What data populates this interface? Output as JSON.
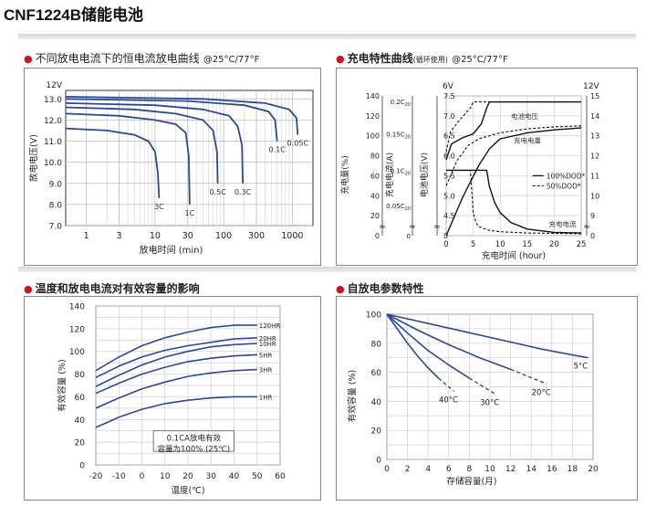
{
  "page_title": "CNF1224B储能电池",
  "sections": [
    {
      "title": "不同放电电流下的恒电流放电曲线",
      "suffix": "@25°C/77°F"
    },
    {
      "title": "充电特性曲线",
      "small": "(循环使用)",
      "suffix": "@25°C/77°F"
    },
    {
      "title": "温度和放电电流对有效容量的影响"
    },
    {
      "title": "自放电参数特性"
    }
  ],
  "chart_data": [
    {
      "type": "line",
      "title": "不同放电电流下的恒电流放电曲线 @25°C/77°F",
      "xlabel": "放电时间 (min)",
      "ylabel": "放电电压(V)",
      "x_scale": "log",
      "xlim": [
        0.5,
        2000
      ],
      "ylim": [
        7.0,
        13.4
      ],
      "x_ticks": [
        "1",
        "3",
        "10",
        "30",
        "100",
        "300",
        "1000"
      ],
      "y_ticks": [
        "13.0",
        "12.0",
        "11.0",
        "10.0",
        "9.0",
        "8.0",
        "7.0"
      ],
      "top_label": "12V",
      "grid": true,
      "series": [
        {
          "name": "3C",
          "x": [
            0.5,
            2,
            5,
            8,
            10,
            11,
            11.5
          ],
          "y": [
            11.6,
            11.5,
            11.3,
            11.0,
            10.5,
            9.5,
            8.3
          ]
        },
        {
          "name": "1C",
          "x": [
            0.5,
            3,
            10,
            20,
            28,
            31,
            32
          ],
          "y": [
            12.3,
            12.2,
            12.0,
            11.8,
            11.4,
            10.3,
            8.0
          ]
        },
        {
          "name": "0.5C",
          "x": [
            0.5,
            5,
            20,
            50,
            70,
            80,
            82
          ],
          "y": [
            12.6,
            12.5,
            12.3,
            12.0,
            11.5,
            10.5,
            9.0
          ]
        },
        {
          "name": "0.3C",
          "x": [
            0.5,
            10,
            50,
            120,
            160,
            185,
            190
          ],
          "y": [
            12.8,
            12.7,
            12.5,
            12.2,
            11.7,
            10.8,
            9.0
          ]
        },
        {
          "name": "0.1C",
          "x": [
            0.5,
            30,
            200,
            450,
            560,
            600
          ],
          "y": [
            13.0,
            12.9,
            12.7,
            12.4,
            12.0,
            11.0
          ]
        },
        {
          "name": "0.05C",
          "x": [
            0.5,
            50,
            400,
            900,
            1150,
            1200
          ],
          "y": [
            13.1,
            13.0,
            12.8,
            12.5,
            12.1,
            11.3
          ]
        }
      ]
    },
    {
      "type": "line",
      "title": "充电特性曲线 (循环使用) @25°C/77°F",
      "xlabel": "充电时间 (hour)",
      "x_ticks": [
        "0",
        "5",
        "10",
        "15",
        "20",
        "25"
      ],
      "xlim": [
        0,
        25
      ],
      "axes": [
        {
          "label": "充电量(%)",
          "ticks": [
            "140",
            "120",
            "100",
            "80",
            "60",
            "40",
            "20",
            "0"
          ]
        },
        {
          "label": "充电电流(A)",
          "ticks": [
            "0.2C20",
            "0.15C20",
            "0.1C20",
            "0.05C20",
            "0"
          ]
        },
        {
          "label": "电池电压(V)",
          "top": "6V",
          "ticks": [
            "7.5",
            "7.0",
            "6.5",
            "6.0",
            "5.5",
            "5.0",
            "4.5",
            "0"
          ]
        },
        {
          "label": "",
          "top": "12V",
          "ticks": [
            "15",
            "14",
            "13",
            "12",
            "11",
            "10",
            "9",
            "0"
          ]
        }
      ],
      "annotations": [
        "电池电压",
        "充电电量",
        "充电电流"
      ],
      "legend": {
        "position": "right",
        "entries": [
          "100%DOD*",
          "50%DOD*"
        ]
      },
      "series": [
        {
          "name": "电池电压",
          "dod": "100%DOD*",
          "x": [
            0,
            1,
            3,
            5,
            6.5,
            7.5,
            8,
            25
          ],
          "y_volt_6v": [
            5.9,
            6.3,
            6.45,
            6.55,
            6.8,
            7.2,
            7.35,
            7.35
          ]
        },
        {
          "name": "电池电压",
          "dod": "50%DOD*",
          "x": [
            0,
            0.8,
            2.5,
            4.5,
            5,
            25
          ],
          "y_volt_6v": [
            6.1,
            6.6,
            6.9,
            7.2,
            7.35,
            7.35
          ]
        },
        {
          "name": "充电量",
          "dod": "100%DOD*",
          "x": [
            0,
            3,
            6,
            8,
            10,
            15,
            20,
            25
          ],
          "y_percent": [
            0,
            38,
            70,
            87,
            97,
            103,
            106,
            108
          ]
        },
        {
          "name": "充电量",
          "dod": "50%DOD*",
          "x": [
            0,
            2,
            4,
            6,
            10,
            15,
            20,
            25
          ],
          "y_percent": [
            50,
            75,
            90,
            97,
            103,
            107,
            109,
            110
          ]
        },
        {
          "name": "充电电流",
          "dod": "100%DOD*",
          "x": [
            0,
            7.5,
            8,
            9,
            10,
            12,
            15,
            20,
            25
          ],
          "y_c20": [
            0.1,
            0.1,
            0.075,
            0.05,
            0.035,
            0.02,
            0.01,
            0.005,
            0.004
          ]
        },
        {
          "name": "充电电流",
          "dod": "50%DOD*",
          "x": [
            0,
            4.5,
            5,
            5.5,
            6,
            8,
            10,
            15,
            25
          ],
          "y_c20": [
            0.1,
            0.1,
            0.035,
            0.02,
            0.014,
            0.008,
            0.006,
            0.004,
            0.003
          ]
        }
      ]
    },
    {
      "type": "line",
      "title": "温度和放电电流对有效容量的影响",
      "xlabel": "温度(℃)",
      "ylabel": "有效容量 (%)",
      "xlim": [
        -20,
        60
      ],
      "ylim": [
        0,
        140
      ],
      "x_ticks": [
        "-20",
        "-10",
        "0",
        "10",
        "20",
        "30",
        "40",
        "50",
        "60"
      ],
      "y_ticks": [
        "140",
        "120",
        "100",
        "80",
        "60",
        "40",
        "20",
        "0"
      ],
      "grid": true,
      "note": [
        "0.1CA放电有效",
        "容量为100% (25℃)"
      ],
      "series": [
        {
          "name": "120HR",
          "x": [
            -20,
            -10,
            0,
            10,
            20,
            30,
            40,
            50
          ],
          "y": [
            83,
            95,
            105,
            112,
            117,
            121,
            123,
            123
          ]
        },
        {
          "name": "20HR",
          "x": [
            -20,
            -10,
            0,
            10,
            20,
            30,
            40,
            50
          ],
          "y": [
            77,
            87,
            95,
            101,
            105,
            108,
            111,
            112
          ]
        },
        {
          "name": "10HR",
          "x": [
            -20,
            -10,
            0,
            10,
            20,
            30,
            40,
            50
          ],
          "y": [
            69,
            79,
            88,
            95,
            100,
            104,
            106,
            107
          ]
        },
        {
          "name": "5HR",
          "x": [
            -20,
            -10,
            0,
            10,
            20,
            30,
            40,
            50
          ],
          "y": [
            63,
            72,
            80,
            86,
            91,
            94,
            96,
            97
          ]
        },
        {
          "name": "3HR",
          "x": [
            -20,
            -10,
            0,
            10,
            20,
            30,
            40,
            50
          ],
          "y": [
            50,
            59,
            67,
            73,
            78,
            81,
            83,
            84
          ]
        },
        {
          "name": "1HR",
          "x": [
            -20,
            -10,
            0,
            10,
            20,
            30,
            40,
            50
          ],
          "y": [
            33,
            42,
            49,
            54,
            57,
            59,
            60,
            60
          ]
        }
      ]
    },
    {
      "type": "line",
      "title": "自放电参数特性",
      "xlabel": "存储容量(月)",
      "ylabel": "有效容量 (%)",
      "xlim": [
        0,
        20
      ],
      "ylim": [
        0,
        100
      ],
      "x_ticks": [
        "0",
        "2",
        "4",
        "6",
        "8",
        "10",
        "12",
        "14",
        "16",
        "18",
        "20"
      ],
      "y_ticks": [
        "100",
        "80",
        "60",
        "40",
        "20",
        "0"
      ],
      "grid": true,
      "series": [
        {
          "name": "40°C",
          "x": [
            0,
            1,
            2,
            3,
            4,
            5
          ],
          "y": [
            100,
            90,
            80,
            71,
            63,
            56
          ],
          "dashed_x": [
            5,
            6.5
          ],
          "dashed_y": [
            56,
            47
          ]
        },
        {
          "name": "30°C",
          "x": [
            0,
            2,
            4,
            6,
            8
          ],
          "y": [
            100,
            87,
            75,
            65,
            56
          ],
          "dashed_x": [
            8,
            10.5
          ],
          "dashed_y": [
            56,
            45
          ]
        },
        {
          "name": "20°C",
          "x": [
            0,
            3,
            6,
            9,
            12
          ],
          "y": [
            100,
            89,
            79,
            70,
            62
          ],
          "dashed_x": [
            12,
            15.5
          ],
          "dashed_y": [
            62,
            52
          ]
        },
        {
          "name": "5°C",
          "x": [
            0,
            5,
            10,
            15,
            19.5
          ],
          "y": [
            100,
            92,
            84,
            76,
            70
          ]
        }
      ]
    }
  ]
}
